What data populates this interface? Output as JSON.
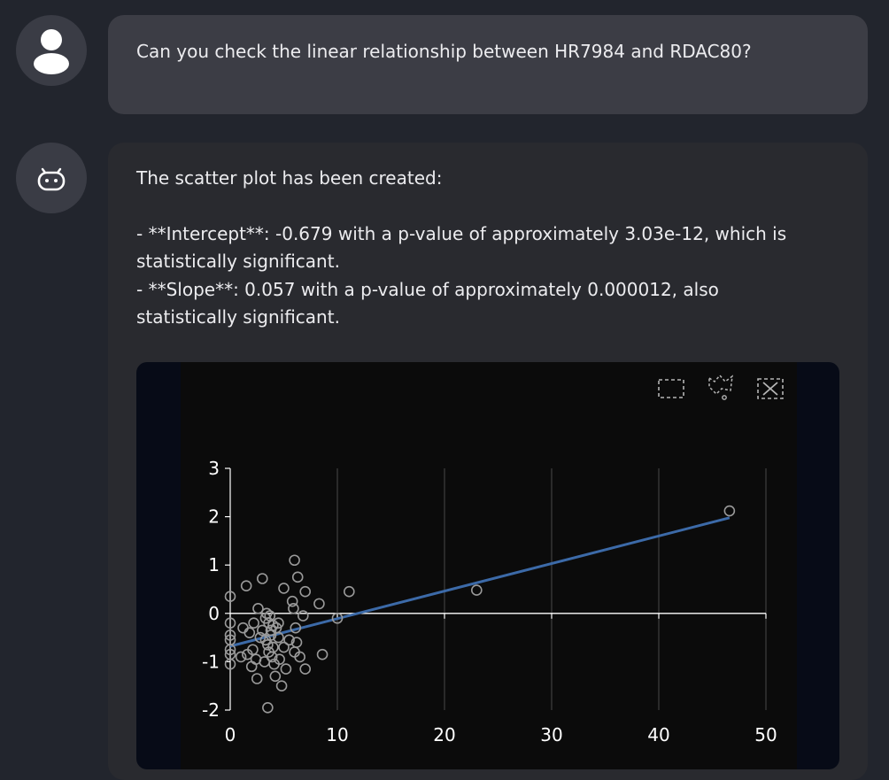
{
  "user_message": {
    "text": "Can you check the linear relationship between HR7984 and RDAC80?"
  },
  "assistant_message": {
    "intro": "The scatter plot has been created:",
    "line1": "- **Intercept**: -0.679 with a p-value of approximately 3.03e-12, which is",
    "line2": "statistically significant.",
    "line3": "- **Slope**: 0.057 with a p-value of approximately 0.000012, also",
    "line4": "statistically significant."
  },
  "toolbar": {
    "icons": [
      "box-select-icon",
      "lasso-select-icon",
      "reset-icon"
    ]
  },
  "colors": {
    "page_bg": "#22252d",
    "user_bubble": "#3c3d45",
    "bot_bubble": "#292a2f",
    "plot_outer": "#070b17",
    "plot_inner": "#0b0b0b",
    "regression_line": "#3c6aa8",
    "point_stroke": "#9a9a9a"
  },
  "chart_data": {
    "type": "scatter",
    "title": "",
    "xlabel": "",
    "ylabel": "",
    "xlim": [
      0,
      50
    ],
    "ylim": [
      -2,
      3
    ],
    "xticks": [
      0,
      10,
      20,
      30,
      40,
      50
    ],
    "yticks": [
      -2,
      -1,
      0,
      1,
      2,
      3
    ],
    "grid_x": true,
    "grid_y": false,
    "series": [
      {
        "x": [
          0.0,
          0.0,
          0.0,
          0.0,
          0.0,
          0.0,
          0.0,
          1.0,
          1.2,
          1.5,
          1.6,
          1.8,
          2.0,
          2.1,
          2.2,
          2.4,
          2.5,
          2.6,
          2.8,
          3.0,
          3.0,
          3.2,
          3.3,
          3.3,
          3.4,
          3.5,
          3.5,
          3.6,
          3.6,
          3.7,
          3.8,
          3.8,
          3.9,
          4.0,
          4.0,
          4.1,
          4.2,
          4.3,
          4.5,
          4.5,
          4.6,
          4.8,
          5.0,
          5.0,
          5.2,
          5.5,
          5.8,
          5.9,
          6.0,
          6.0,
          6.1,
          6.2,
          6.3,
          6.5,
          6.8,
          7.0,
          7.0,
          8.3,
          8.6,
          10.0,
          11.1,
          23.0,
          46.6
        ],
        "y": [
          0.35,
          -0.2,
          -0.45,
          -0.55,
          -0.75,
          -0.85,
          -1.05,
          -0.9,
          -0.3,
          0.57,
          -0.85,
          -0.4,
          -1.1,
          -0.75,
          -0.2,
          -0.95,
          -1.35,
          0.1,
          -0.5,
          -0.35,
          0.72,
          -1.0,
          -0.1,
          -0.55,
          0.0,
          -0.65,
          -1.95,
          -0.2,
          -0.8,
          -0.05,
          -0.35,
          -0.45,
          -0.9,
          -0.7,
          -0.25,
          -1.05,
          -1.3,
          -0.3,
          -0.5,
          -0.2,
          -0.95,
          -1.5,
          0.52,
          -0.7,
          -1.15,
          -0.55,
          0.25,
          0.1,
          -0.8,
          1.1,
          -0.3,
          -0.6,
          0.75,
          -0.9,
          -0.05,
          0.45,
          -1.15,
          0.2,
          -0.85,
          -0.1,
          0.45,
          0.48,
          2.12
        ]
      }
    ],
    "regression": {
      "intercept": -0.679,
      "slope": 0.057,
      "x_range": [
        0,
        46.6
      ]
    }
  }
}
